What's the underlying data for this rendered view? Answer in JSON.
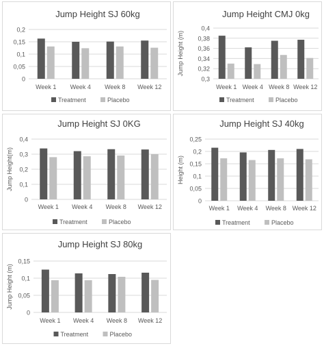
{
  "colors": {
    "treatment": "#595959",
    "placebo": "#bfbfbf",
    "grid": "#d9d9d9",
    "text": "#595959",
    "title": "#404040",
    "panel_border": "#d9d9d9"
  },
  "chart_data": [
    {
      "type": "bar",
      "title": "Jump Height SJ 60kg",
      "ylabel": "",
      "xlabel": "",
      "categories": [
        "Week 1",
        "Week 4",
        "Week 8",
        "Week 12"
      ],
      "series": [
        {
          "name": "Treatment",
          "values": [
            0.163,
            0.15,
            0.151,
            0.155
          ]
        },
        {
          "name": "Placebo",
          "values": [
            0.131,
            0.124,
            0.131,
            0.126
          ]
        }
      ],
      "ylim": [
        0,
        0.2
      ],
      "yticks": [
        "0",
        "0,05",
        "0,1",
        "0,15",
        "0,2"
      ],
      "grid": true,
      "legend": "bottom"
    },
    {
      "type": "bar",
      "title": "Jump Height CMJ 0kg",
      "ylabel": "Jump Height (m)",
      "xlabel": "",
      "categories": [
        "Week 1",
        "Week 4",
        "Week 8",
        "Week 12"
      ],
      "series": [
        {
          "name": "Treatment",
          "values": [
            0.385,
            0.362,
            0.375,
            0.377
          ]
        },
        {
          "name": "Placebo",
          "values": [
            0.33,
            0.329,
            0.347,
            0.341
          ]
        }
      ],
      "ylim": [
        0.3,
        0.4
      ],
      "yticks": [
        "0,3",
        "0,32",
        "0,34",
        "0,36",
        "0,38",
        "0,4"
      ],
      "grid": true,
      "legend": "bottom"
    },
    {
      "type": "bar",
      "title": "Jump Height SJ 0KG",
      "ylabel": "Jump Height(m)",
      "xlabel": "",
      "categories": [
        "Week 1",
        "Week 4",
        "Week 8",
        "Week 12"
      ],
      "series": [
        {
          "name": "Treatment",
          "values": [
            0.338,
            0.32,
            0.333,
            0.331
          ]
        },
        {
          "name": "Placebo",
          "values": [
            0.28,
            0.286,
            0.291,
            0.3
          ]
        }
      ],
      "ylim": [
        0,
        0.4
      ],
      "yticks": [
        "0",
        "0,1",
        "0,2",
        "0,3",
        "0,4"
      ],
      "grid": true,
      "legend": "bottom"
    },
    {
      "type": "bar",
      "title": "Jump Height SJ 40kg",
      "ylabel": "Height (m)",
      "xlabel": "",
      "categories": [
        "Week 1",
        "Week 4",
        "Week 8",
        "Week 12"
      ],
      "series": [
        {
          "name": "Treatment",
          "values": [
            0.215,
            0.196,
            0.206,
            0.21
          ]
        },
        {
          "name": "Placebo",
          "values": [
            0.172,
            0.165,
            0.172,
            0.168
          ]
        }
      ],
      "ylim": [
        0,
        0.25
      ],
      "yticks": [
        "0",
        "0,05",
        "0,1",
        "0,15",
        "0,2",
        "0,25"
      ],
      "grid": true,
      "legend": "bottom"
    },
    {
      "type": "bar",
      "title": "Jump Height SJ 80kg",
      "ylabel": "Jump Height (m)",
      "xlabel": "",
      "categories": [
        "Week 1",
        "Week 4",
        "Week 8",
        "Week 12"
      ],
      "series": [
        {
          "name": "Treatment",
          "values": [
            0.125,
            0.114,
            0.112,
            0.116
          ]
        },
        {
          "name": "Placebo",
          "values": [
            0.094,
            0.094,
            0.104,
            0.095
          ]
        }
      ],
      "ylim": [
        0,
        0.15
      ],
      "yticks": [
        "0",
        "0,05",
        "0,1",
        "0,15"
      ],
      "grid": true,
      "legend": "bottom"
    }
  ]
}
